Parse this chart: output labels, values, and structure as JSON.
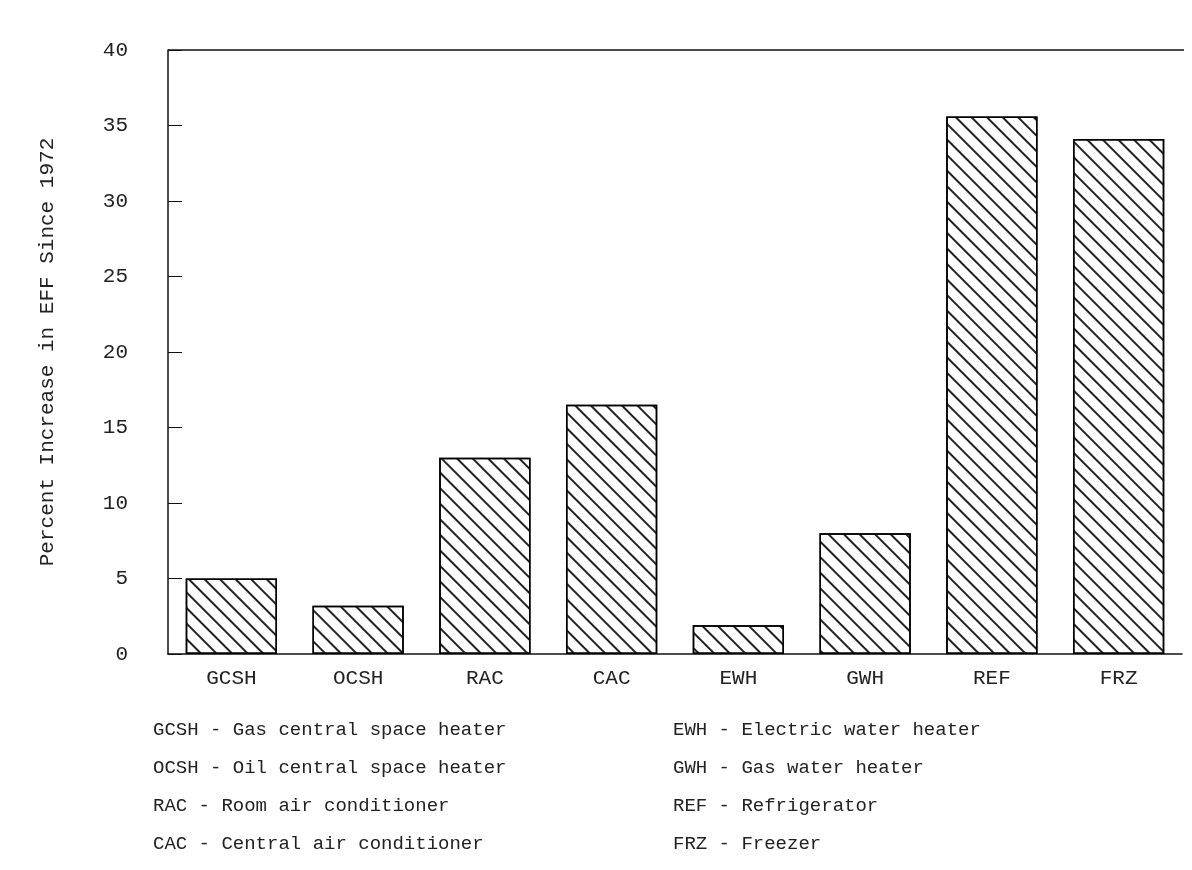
{
  "chart_data": {
    "type": "bar",
    "ylabel": "Percent Increase in EFF Since 1972",
    "categories": [
      "GCSH",
      "OCSH",
      "RAC",
      "CAC",
      "EWH",
      "GWH",
      "REF",
      "FRZ"
    ],
    "values": [
      5.0,
      3.2,
      13.0,
      16.5,
      1.9,
      8.0,
      35.6,
      34.1
    ],
    "color": "#ffffff",
    "ylim": [
      0,
      40
    ],
    "yticks": [
      0,
      5,
      10,
      15,
      20,
      25,
      30,
      35,
      40
    ],
    "grid": false,
    "annotations": [
      "GCSH - Gas central space heater",
      "OCSH - Oil central space heater",
      "RAC - Room air conditioner",
      "CAC - Central air conditioner",
      "EWH - Electric water heater",
      "GWH - Gas water heater",
      "REF - Refrigerator",
      "FRZ - Freezer"
    ]
  }
}
